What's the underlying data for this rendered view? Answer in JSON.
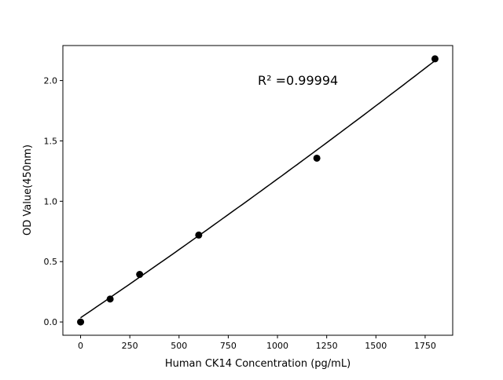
{
  "chart_data": {
    "type": "scatter",
    "title": "",
    "xlabel": "Human CK14 Concentration (pg/mL)",
    "ylabel": "OD Value(450nm)",
    "xlim": [
      -90,
      1890
    ],
    "ylim": [
      -0.11,
      2.29
    ],
    "xticks": [
      0,
      250,
      500,
      750,
      1000,
      1250,
      1500,
      1750
    ],
    "xtick_labels": [
      "0",
      "250",
      "500",
      "750",
      "1000",
      "1250",
      "1500",
      "1750"
    ],
    "yticks": [
      0.0,
      0.5,
      1.0,
      1.5,
      2.0
    ],
    "ytick_labels": [
      "0.0",
      "0.5",
      "1.0",
      "1.5",
      "2.0"
    ],
    "grid": false,
    "points": {
      "x": [
        0,
        150,
        300,
        600,
        1200,
        1800
      ],
      "y": [
        0.0,
        0.19,
        0.394,
        0.72,
        1.357,
        2.18
      ],
      "color": "#000000"
    },
    "fit_curve": {
      "type": "quadratic",
      "coefficients": [
        0.035,
        0.001108,
        4.17e-08
      ],
      "x_range": [
        0,
        1800
      ],
      "color": "#000000"
    },
    "annotation": "R² =0.99994"
  }
}
